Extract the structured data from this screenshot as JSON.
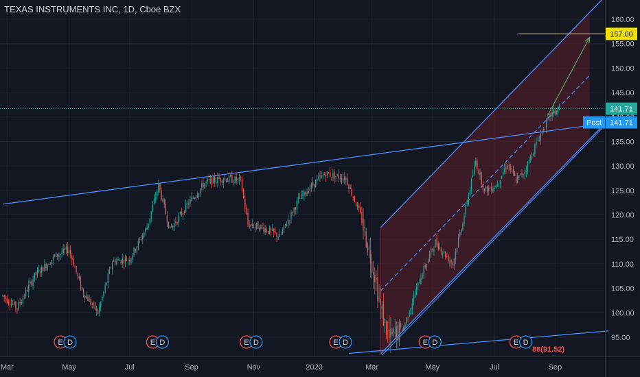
{
  "header": {
    "symbol_title": "TEXAS INSTRUMENTS INC, 1D, Cboe BZX"
  },
  "colors": {
    "background": "#131722",
    "up": "#26a69a",
    "down": "#ef5350",
    "trendline": "#2962ff",
    "trendline_light": "#4d8eff",
    "channel_fill": "#5b1f2a",
    "target_line": "#f5e100",
    "last_price_line": "#26a69a",
    "post_badge": "#2196f3",
    "axis_text": "#b2b5be",
    "earnings_ring": "#ef5350",
    "dividend_ring": "#2196f3"
  },
  "chart_data": {
    "type": "candlestick",
    "title": "TEXAS INSTRUMENTS INC, 1D, Cboe BZX",
    "ylim": [
      91,
      163
    ],
    "y_ticks": [
      95,
      100,
      105,
      110,
      115,
      120,
      125,
      130,
      135,
      140,
      145,
      150,
      155,
      160
    ],
    "y_tick_labels": [
      "95.00",
      "100.00",
      "105.00",
      "110.00",
      "115.00",
      "120.00",
      "125.00",
      "130.00",
      "135.00",
      "140.00",
      "145.00",
      "150.00",
      "155.00",
      "160.00"
    ],
    "x_tick_labels": [
      "Mar",
      "May",
      "Jul",
      "Sep",
      "Nov",
      "2020",
      "Mar",
      "May",
      "Jul",
      "Sep"
    ],
    "x_tick_index": [
      3,
      46,
      88,
      131,
      174,
      216,
      256,
      298,
      341,
      383
    ],
    "grid": true,
    "legend": "none",
    "price_labels": {
      "target": "157.00",
      "last": "141.71",
      "post_label": "Post",
      "post_value": "141.71"
    },
    "target_price": 157,
    "last_price": 141.71,
    "low_marker_text": "88(91.52)",
    "events": [
      {
        "index": 40,
        "markers": [
          "E",
          "D"
        ]
      },
      {
        "index": 104,
        "markers": [
          "E",
          "D"
        ]
      },
      {
        "index": 169,
        "markers": [
          "E",
          "D"
        ]
      },
      {
        "index": 231,
        "markers": [
          "E",
          "D"
        ]
      },
      {
        "index": 293,
        "markers": [
          "E",
          "D"
        ]
      },
      {
        "index": 356,
        "markers": [
          "E",
          "D"
        ]
      }
    ],
    "trend_lines": [
      {
        "from": [
          0,
          122.2
        ],
        "to": [
          420,
          138.8
        ]
      },
      {
        "from": [
          240,
          91.7
        ],
        "to": [
          420,
          96.3
        ]
      }
    ],
    "regression_channel": {
      "start_index": 262,
      "end_index": 407,
      "upper_start": 117.4,
      "upper_end": 161.4,
      "lower_start": 91.6,
      "lower_end": 135.5,
      "mid_start": 104.5,
      "mid_end": 148.5
    },
    "target_arrow": {
      "from": [
        378,
        140.4
      ],
      "to": [
        407,
        156.3
      ]
    },
    "anchor_points": [
      [
        0,
        103.5
      ],
      [
        10,
        101.0
      ],
      [
        22,
        107.5
      ],
      [
        36,
        111.5
      ],
      [
        46,
        113.0
      ],
      [
        55,
        104.5
      ],
      [
        66,
        100.0
      ],
      [
        76,
        110.5
      ],
      [
        88,
        111.0
      ],
      [
        100,
        117.5
      ],
      [
        108,
        126.0
      ],
      [
        116,
        117.0
      ],
      [
        128,
        122.0
      ],
      [
        140,
        126.5
      ],
      [
        152,
        127.5
      ],
      [
        165,
        127.0
      ],
      [
        170,
        118.0
      ],
      [
        180,
        117.5
      ],
      [
        192,
        115.5
      ],
      [
        205,
        123.0
      ],
      [
        216,
        126.5
      ],
      [
        224,
        128.5
      ],
      [
        230,
        128.0
      ],
      [
        238,
        127.5
      ],
      [
        248,
        120.0
      ],
      [
        258,
        108.0
      ],
      [
        262,
        101.0
      ],
      [
        268,
        94.5
      ],
      [
        278,
        97.0
      ],
      [
        290,
        107.5
      ],
      [
        300,
        114.5
      ],
      [
        312,
        110.0
      ],
      [
        320,
        120.0
      ],
      [
        328,
        131.0
      ],
      [
        334,
        125.0
      ],
      [
        342,
        126.0
      ],
      [
        350,
        130.5
      ],
      [
        356,
        127.0
      ],
      [
        362,
        129.0
      ],
      [
        372,
        136.0
      ],
      [
        380,
        140.5
      ],
      [
        386,
        141.71
      ]
    ]
  }
}
